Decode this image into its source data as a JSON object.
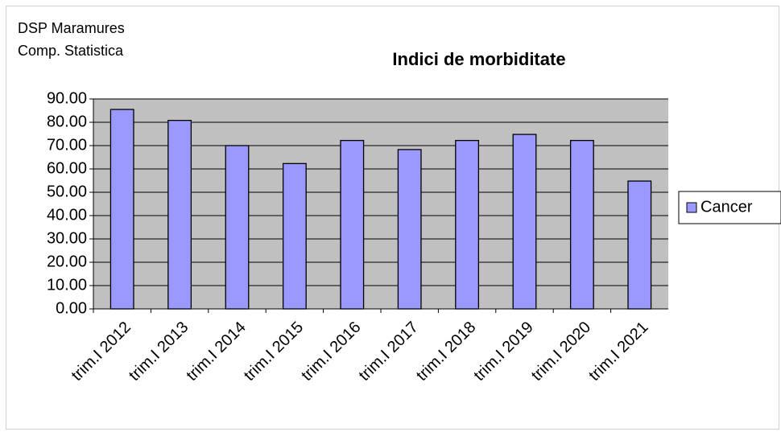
{
  "chart_data": {
    "type": "bar",
    "title": "Indici de morbiditate",
    "annotations": [
      "DSP Maramures",
      "Comp. Statistica"
    ],
    "categories": [
      "trim.I 2012",
      "trim.I 2013",
      "trim.I 2014",
      "trim.I 2015",
      "trim.I 2016",
      "trim.I 2017",
      "trim.I 2018",
      "trim.I 2019",
      "trim.I 2020",
      "trim.I 2021"
    ],
    "series": [
      {
        "name": "Cancer",
        "color": "#9999ff",
        "values": [
          85.5,
          80.8,
          70.0,
          62.3,
          72.2,
          68.3,
          72.2,
          74.8,
          72.2,
          54.8
        ]
      }
    ],
    "ylim": [
      0,
      90
    ],
    "yticks": [
      {
        "value": 0,
        "label": "0.00"
      },
      {
        "value": 10,
        "label": "10.00"
      },
      {
        "value": 20,
        "label": "20.00"
      },
      {
        "value": 30,
        "label": "30.00"
      },
      {
        "value": 40,
        "label": "40.00"
      },
      {
        "value": 50,
        "label": "50.00"
      },
      {
        "value": 60,
        "label": "60.00"
      },
      {
        "value": 70,
        "label": "70.00"
      },
      {
        "value": 80,
        "label": "80.00"
      },
      {
        "value": 90,
        "label": "90.00"
      }
    ],
    "grid": true,
    "legend": "right"
  }
}
